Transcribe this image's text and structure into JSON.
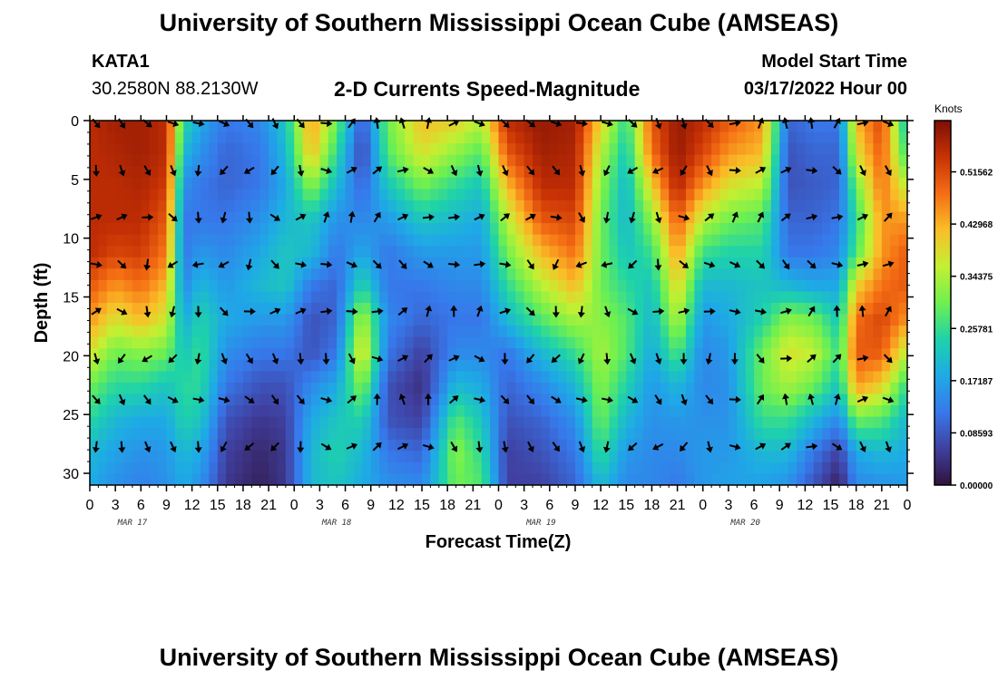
{
  "page": {
    "title": "University of Southern Mississippi Ocean Cube (AMSEAS)",
    "footer_title": "University of Southern Mississippi Ocean Cube (AMSEAS)"
  },
  "station": {
    "id": "KATA1",
    "coords": "30.2580N  88.2130W"
  },
  "model": {
    "label": "Model Start Time",
    "start": "03/17/2022 Hour 00"
  },
  "chart_data": {
    "type": "heatmap",
    "title": "2-D Currents Speed-Magnitude",
    "xlabel": "Forecast Time(Z)",
    "ylabel": "Depth (ft)",
    "xlim": [
      0,
      96
    ],
    "ylim": [
      0,
      31
    ],
    "x_tick_labels": [
      "0",
      "3",
      "6",
      "9",
      "12",
      "15",
      "18",
      "21",
      "0",
      "3",
      "6",
      "9",
      "12",
      "15",
      "18",
      "21",
      "0",
      "3",
      "6",
      "9",
      "12",
      "15",
      "18",
      "21",
      "0",
      "3",
      "6",
      "9",
      "12",
      "15",
      "18",
      "21",
      "0"
    ],
    "y_ticks": [
      0,
      5,
      10,
      15,
      20,
      25,
      30
    ],
    "date_labels": [
      "MAR 17",
      "MAR 18",
      "MAR 19",
      "MAR 20"
    ],
    "colorbar": {
      "title": "Knots",
      "ticks": [
        "0.51562",
        "0.42968",
        "0.34375",
        "0.25781",
        "0.17187",
        "0.08593",
        "0.00000"
      ],
      "range": [
        0,
        0.6
      ]
    },
    "arrow_depths_ft": [
      0,
      4,
      8,
      12,
      16,
      20,
      23.5,
      27.5
    ],
    "arrow_hours": [
      0,
      3,
      6,
      9,
      12,
      15,
      18,
      21,
      24,
      27,
      30,
      33,
      36,
      39,
      42,
      45,
      48,
      51,
      54,
      57,
      60,
      63,
      66,
      69,
      72,
      75,
      78,
      81,
      84,
      87,
      90,
      93
    ],
    "speed_profile_knots": [
      {
        "hour": 0,
        "values": [
          0.55,
          0.55,
          0.55,
          0.55,
          0.55,
          0.5,
          0.45,
          0.38,
          0.3,
          0.25,
          0.2,
          0.18
        ]
      },
      {
        "hour": 3,
        "values": [
          0.57,
          0.56,
          0.55,
          0.55,
          0.52,
          0.45,
          0.38,
          0.3,
          0.25,
          0.2,
          0.17,
          0.15
        ]
      },
      {
        "hour": 6,
        "values": [
          0.57,
          0.57,
          0.56,
          0.55,
          0.53,
          0.48,
          0.42,
          0.32,
          0.25,
          0.18,
          0.15,
          0.13
        ]
      },
      {
        "hour": 9,
        "values": [
          0.55,
          0.55,
          0.53,
          0.5,
          0.47,
          0.42,
          0.37,
          0.3,
          0.22,
          0.18,
          0.16,
          0.15
        ]
      },
      {
        "hour": 11,
        "values": [
          0.25,
          0.2,
          0.15,
          0.12,
          0.12,
          0.14,
          0.18,
          0.22,
          0.25,
          0.24,
          0.2,
          0.18
        ]
      },
      {
        "hour": 13,
        "values": [
          0.18,
          0.15,
          0.12,
          0.12,
          0.16,
          0.2,
          0.24,
          0.26,
          0.25,
          0.22,
          0.18,
          0.15
        ]
      },
      {
        "hour": 16,
        "values": [
          0.12,
          0.1,
          0.1,
          0.12,
          0.14,
          0.16,
          0.18,
          0.15,
          0.12,
          0.08,
          0.06,
          0.05
        ]
      },
      {
        "hour": 20,
        "values": [
          0.14,
          0.12,
          0.12,
          0.15,
          0.18,
          0.2,
          0.16,
          0.12,
          0.08,
          0.05,
          0.03,
          0.02
        ]
      },
      {
        "hour": 23,
        "values": [
          0.22,
          0.2,
          0.18,
          0.2,
          0.22,
          0.22,
          0.16,
          0.12,
          0.08,
          0.06,
          0.05,
          0.05
        ]
      },
      {
        "hour": 26,
        "values": [
          0.45,
          0.42,
          0.32,
          0.22,
          0.2,
          0.12,
          0.08,
          0.08,
          0.14,
          0.18,
          0.2,
          0.2
        ]
      },
      {
        "hour": 29,
        "values": [
          0.3,
          0.25,
          0.2,
          0.15,
          0.12,
          0.1,
          0.1,
          0.12,
          0.18,
          0.22,
          0.24,
          0.22
        ]
      },
      {
        "hour": 32,
        "values": [
          0.08,
          0.06,
          0.1,
          0.14,
          0.18,
          0.25,
          0.35,
          0.4,
          0.32,
          0.24,
          0.2,
          0.18
        ]
      },
      {
        "hour": 35,
        "values": [
          0.3,
          0.28,
          0.22,
          0.16,
          0.12,
          0.12,
          0.14,
          0.12,
          0.08,
          0.08,
          0.12,
          0.15
        ]
      },
      {
        "hour": 39,
        "values": [
          0.42,
          0.38,
          0.3,
          0.22,
          0.16,
          0.12,
          0.1,
          0.06,
          0.04,
          0.06,
          0.1,
          0.14
        ]
      },
      {
        "hour": 43,
        "values": [
          0.4,
          0.32,
          0.25,
          0.2,
          0.16,
          0.14,
          0.12,
          0.14,
          0.2,
          0.28,
          0.32,
          0.3
        ]
      },
      {
        "hour": 46,
        "values": [
          0.35,
          0.28,
          0.22,
          0.18,
          0.16,
          0.14,
          0.12,
          0.14,
          0.18,
          0.22,
          0.25,
          0.28
        ]
      },
      {
        "hour": 49,
        "values": [
          0.55,
          0.5,
          0.42,
          0.35,
          0.3,
          0.25,
          0.2,
          0.12,
          0.1,
          0.08,
          0.06,
          0.06
        ]
      },
      {
        "hour": 53,
        "values": [
          0.58,
          0.57,
          0.55,
          0.5,
          0.42,
          0.35,
          0.28,
          0.2,
          0.14,
          0.1,
          0.08,
          0.06
        ]
      },
      {
        "hour": 57,
        "values": [
          0.57,
          0.56,
          0.55,
          0.52,
          0.48,
          0.42,
          0.34,
          0.26,
          0.2,
          0.15,
          0.12,
          0.1
        ]
      },
      {
        "hour": 60,
        "values": [
          0.4,
          0.35,
          0.32,
          0.3,
          0.3,
          0.3,
          0.32,
          0.34,
          0.32,
          0.3,
          0.26,
          0.2
        ]
      },
      {
        "hour": 63,
        "values": [
          0.25,
          0.22,
          0.2,
          0.2,
          0.22,
          0.25,
          0.28,
          0.28,
          0.24,
          0.2,
          0.16,
          0.14
        ]
      },
      {
        "hour": 66,
        "values": [
          0.5,
          0.48,
          0.4,
          0.32,
          0.26,
          0.22,
          0.2,
          0.18,
          0.16,
          0.15,
          0.14,
          0.14
        ]
      },
      {
        "hour": 69,
        "values": [
          0.58,
          0.58,
          0.56,
          0.5,
          0.45,
          0.4,
          0.35,
          0.28,
          0.2,
          0.16,
          0.14,
          0.12
        ]
      },
      {
        "hour": 72,
        "values": [
          0.55,
          0.52,
          0.45,
          0.35,
          0.26,
          0.2,
          0.16,
          0.14,
          0.14,
          0.15,
          0.16,
          0.16
        ]
      },
      {
        "hour": 75,
        "values": [
          0.5,
          0.45,
          0.38,
          0.3,
          0.24,
          0.2,
          0.18,
          0.16,
          0.15,
          0.15,
          0.16,
          0.17
        ]
      },
      {
        "hour": 79,
        "values": [
          0.45,
          0.42,
          0.35,
          0.28,
          0.24,
          0.22,
          0.24,
          0.3,
          0.3,
          0.26,
          0.2,
          0.17
        ]
      },
      {
        "hour": 82,
        "values": [
          0.1,
          0.08,
          0.08,
          0.1,
          0.12,
          0.2,
          0.32,
          0.38,
          0.34,
          0.26,
          0.2,
          0.15
        ]
      },
      {
        "hour": 85,
        "values": [
          0.12,
          0.1,
          0.09,
          0.1,
          0.12,
          0.18,
          0.3,
          0.36,
          0.3,
          0.2,
          0.12,
          0.08
        ]
      },
      {
        "hour": 88,
        "values": [
          0.12,
          0.1,
          0.1,
          0.12,
          0.14,
          0.18,
          0.22,
          0.26,
          0.22,
          0.14,
          0.06,
          0.02
        ]
      },
      {
        "hour": 90,
        "values": [
          0.42,
          0.38,
          0.3,
          0.25,
          0.28,
          0.4,
          0.48,
          0.5,
          0.45,
          0.3,
          0.18,
          0.14
        ]
      },
      {
        "hour": 93,
        "values": [
          0.52,
          0.5,
          0.48,
          0.45,
          0.45,
          0.48,
          0.52,
          0.5,
          0.4,
          0.28,
          0.2,
          0.15
        ]
      },
      {
        "hour": 96,
        "values": [
          0.2,
          0.25,
          0.35,
          0.45,
          0.5,
          0.5,
          0.45,
          0.35,
          0.25,
          0.2,
          0.18,
          0.16
        ]
      }
    ],
    "profile_depths_ft": [
      0,
      2.8,
      5.6,
      8.5,
      11.3,
      14.1,
      16.9,
      19.7,
      22.5,
      25.4,
      28.2,
      31
    ]
  }
}
